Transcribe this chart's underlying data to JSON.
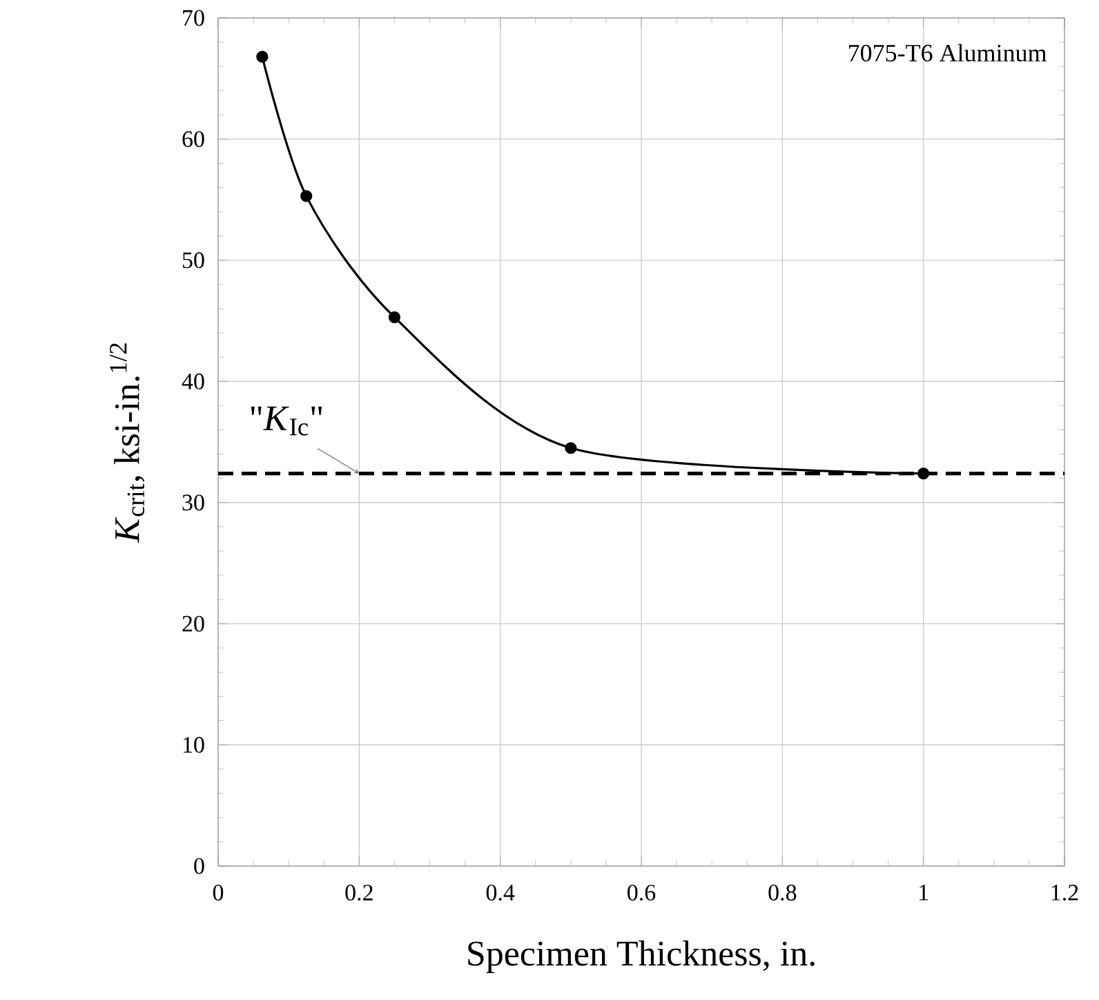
{
  "chart_data": {
    "type": "line",
    "xlabel": "Specimen Thickness, in.",
    "ylabel": "*K*$_{crit}$, ksi-in.$^{1/2}$",
    "x": [
      0.0625,
      0.125,
      0.25,
      0.5,
      1.0
    ],
    "series": [
      {
        "color": "#000000",
        "values": [
          66.8,
          55.3,
          45.3,
          34.5,
          32.4
        ]
      }
    ],
    "marker": "circle",
    "line_style": "solid",
    "grid": true,
    "xlim": [
      0,
      1.2
    ],
    "xticks": [
      0,
      0.2,
      0.4,
      0.6,
      0.8,
      1,
      1.2
    ],
    "ylim": [
      0,
      70
    ],
    "yticks": [
      0,
      10,
      20,
      30,
      40,
      50,
      60,
      70
    ],
    "ref_lines": [
      {
        "axis": "y",
        "value": 32.4,
        "color": "#000000",
        "line_style": "dashed"
      }
    ],
    "annotations": [
      "7075-T6 Aluminum",
      {
        "text": "\"*K*$_{Ic}$\"",
        "x": 0.2,
        "y": 32.4
      }
    ]
  }
}
